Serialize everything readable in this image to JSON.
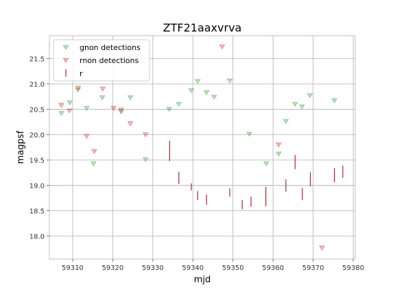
{
  "chart_data": {
    "type": "scatter",
    "title": "ZTF21aaxvrva",
    "xlabel": "mjd",
    "ylabel": "magpsf",
    "xlim": [
      59304.2,
      59380.5
    ],
    "ylim": [
      21.95,
      17.55
    ],
    "y_inverted": true,
    "grid": true,
    "legend_position": "top-left",
    "x_ticks": [
      59310,
      59320,
      59330,
      59340,
      59350,
      59360,
      59370,
      59380
    ],
    "y_ticks": [
      18.0,
      18.5,
      19.0,
      19.5,
      20.0,
      20.5,
      21.0,
      21.5
    ],
    "series": [
      {
        "name": "gnon detections",
        "kind": "upper-limit",
        "marker": "down-triangle",
        "color": "#2ca02c",
        "points": [
          [
            59307.2,
            20.42
          ],
          [
            59309.3,
            20.63
          ],
          [
            59311.3,
            20.88
          ],
          [
            59313.5,
            20.52
          ],
          [
            59315.2,
            19.43
          ],
          [
            59317.4,
            20.73
          ],
          [
            59322.1,
            20.49
          ],
          [
            59324.4,
            20.73
          ],
          [
            59328.2,
            19.51
          ],
          [
            59334.1,
            20.5
          ],
          [
            59336.5,
            20.6
          ],
          [
            59339.6,
            20.87
          ],
          [
            59341.2,
            21.05
          ],
          [
            59343.4,
            20.83
          ],
          [
            59345.3,
            20.74
          ],
          [
            59349.2,
            21.06
          ],
          [
            59354.1,
            20.01
          ],
          [
            59358.3,
            19.43
          ],
          [
            59361.4,
            19.62
          ],
          [
            59363.2,
            20.26
          ],
          [
            59365.5,
            20.6
          ],
          [
            59367.2,
            20.55
          ],
          [
            59369.2,
            20.77
          ],
          [
            59375.3,
            20.67
          ]
        ]
      },
      {
        "name": "rnon detections",
        "kind": "upper-limit",
        "marker": "down-triangle",
        "color": "#d62728",
        "points": [
          [
            59307.2,
            20.58
          ],
          [
            59309.2,
            20.47
          ],
          [
            59311.4,
            20.92
          ],
          [
            59313.5,
            19.97
          ],
          [
            59315.4,
            19.67
          ],
          [
            59317.5,
            20.9
          ],
          [
            59320.2,
            20.52
          ],
          [
            59322.1,
            20.45
          ],
          [
            59324.4,
            20.22
          ],
          [
            59328.2,
            20.0
          ],
          [
            59347.3,
            21.73
          ],
          [
            59361.4,
            19.8
          ],
          [
            59372.2,
            17.77
          ]
        ]
      },
      {
        "name": "r",
        "kind": "detection",
        "marker": "errorbar",
        "color": "#b22222",
        "points": [
          [
            59334.2,
            19.68,
            0.2
          ],
          [
            59336.5,
            19.15,
            0.12
          ],
          [
            59339.6,
            18.97,
            0.07
          ],
          [
            59341.2,
            18.8,
            0.09
          ],
          [
            59343.4,
            18.72,
            0.1
          ],
          [
            59349.2,
            18.86,
            0.08
          ],
          [
            59352.3,
            18.62,
            0.09
          ],
          [
            59354.5,
            18.68,
            0.1
          ],
          [
            59358.2,
            18.78,
            0.19
          ],
          [
            59363.2,
            19.0,
            0.12
          ],
          [
            59365.5,
            19.46,
            0.14
          ],
          [
            59367.3,
            18.83,
            0.12
          ],
          [
            59369.3,
            19.12,
            0.14
          ],
          [
            59375.3,
            19.2,
            0.14
          ],
          [
            59377.4,
            19.27,
            0.12
          ]
        ]
      }
    ]
  },
  "legend": [
    {
      "label": "gnon detections",
      "marker": "down-triangle",
      "color": "#2ca02c"
    },
    {
      "label": "rnon detections",
      "marker": "down-triangle",
      "color": "#d62728"
    },
    {
      "label": "r",
      "marker": "errorbar",
      "color": "#b22222"
    }
  ]
}
